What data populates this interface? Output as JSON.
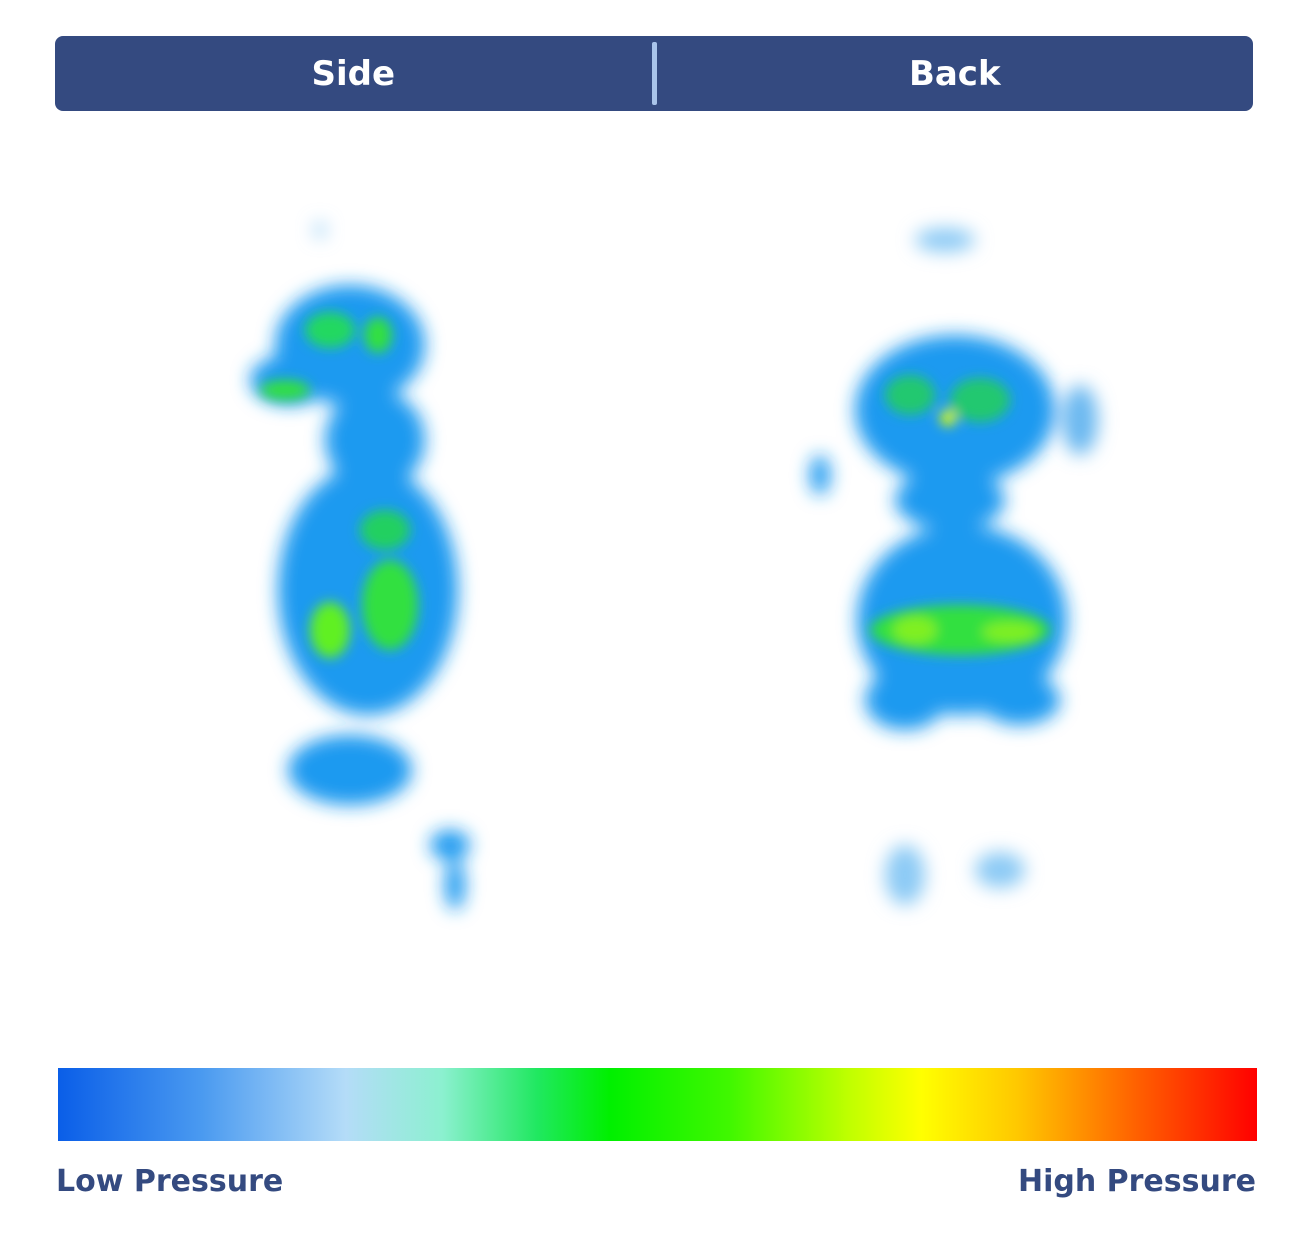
{
  "tabs": [
    "Side",
    "Back"
  ],
  "legend": {
    "low": "Low Pressure",
    "high": "High Pressure"
  }
}
